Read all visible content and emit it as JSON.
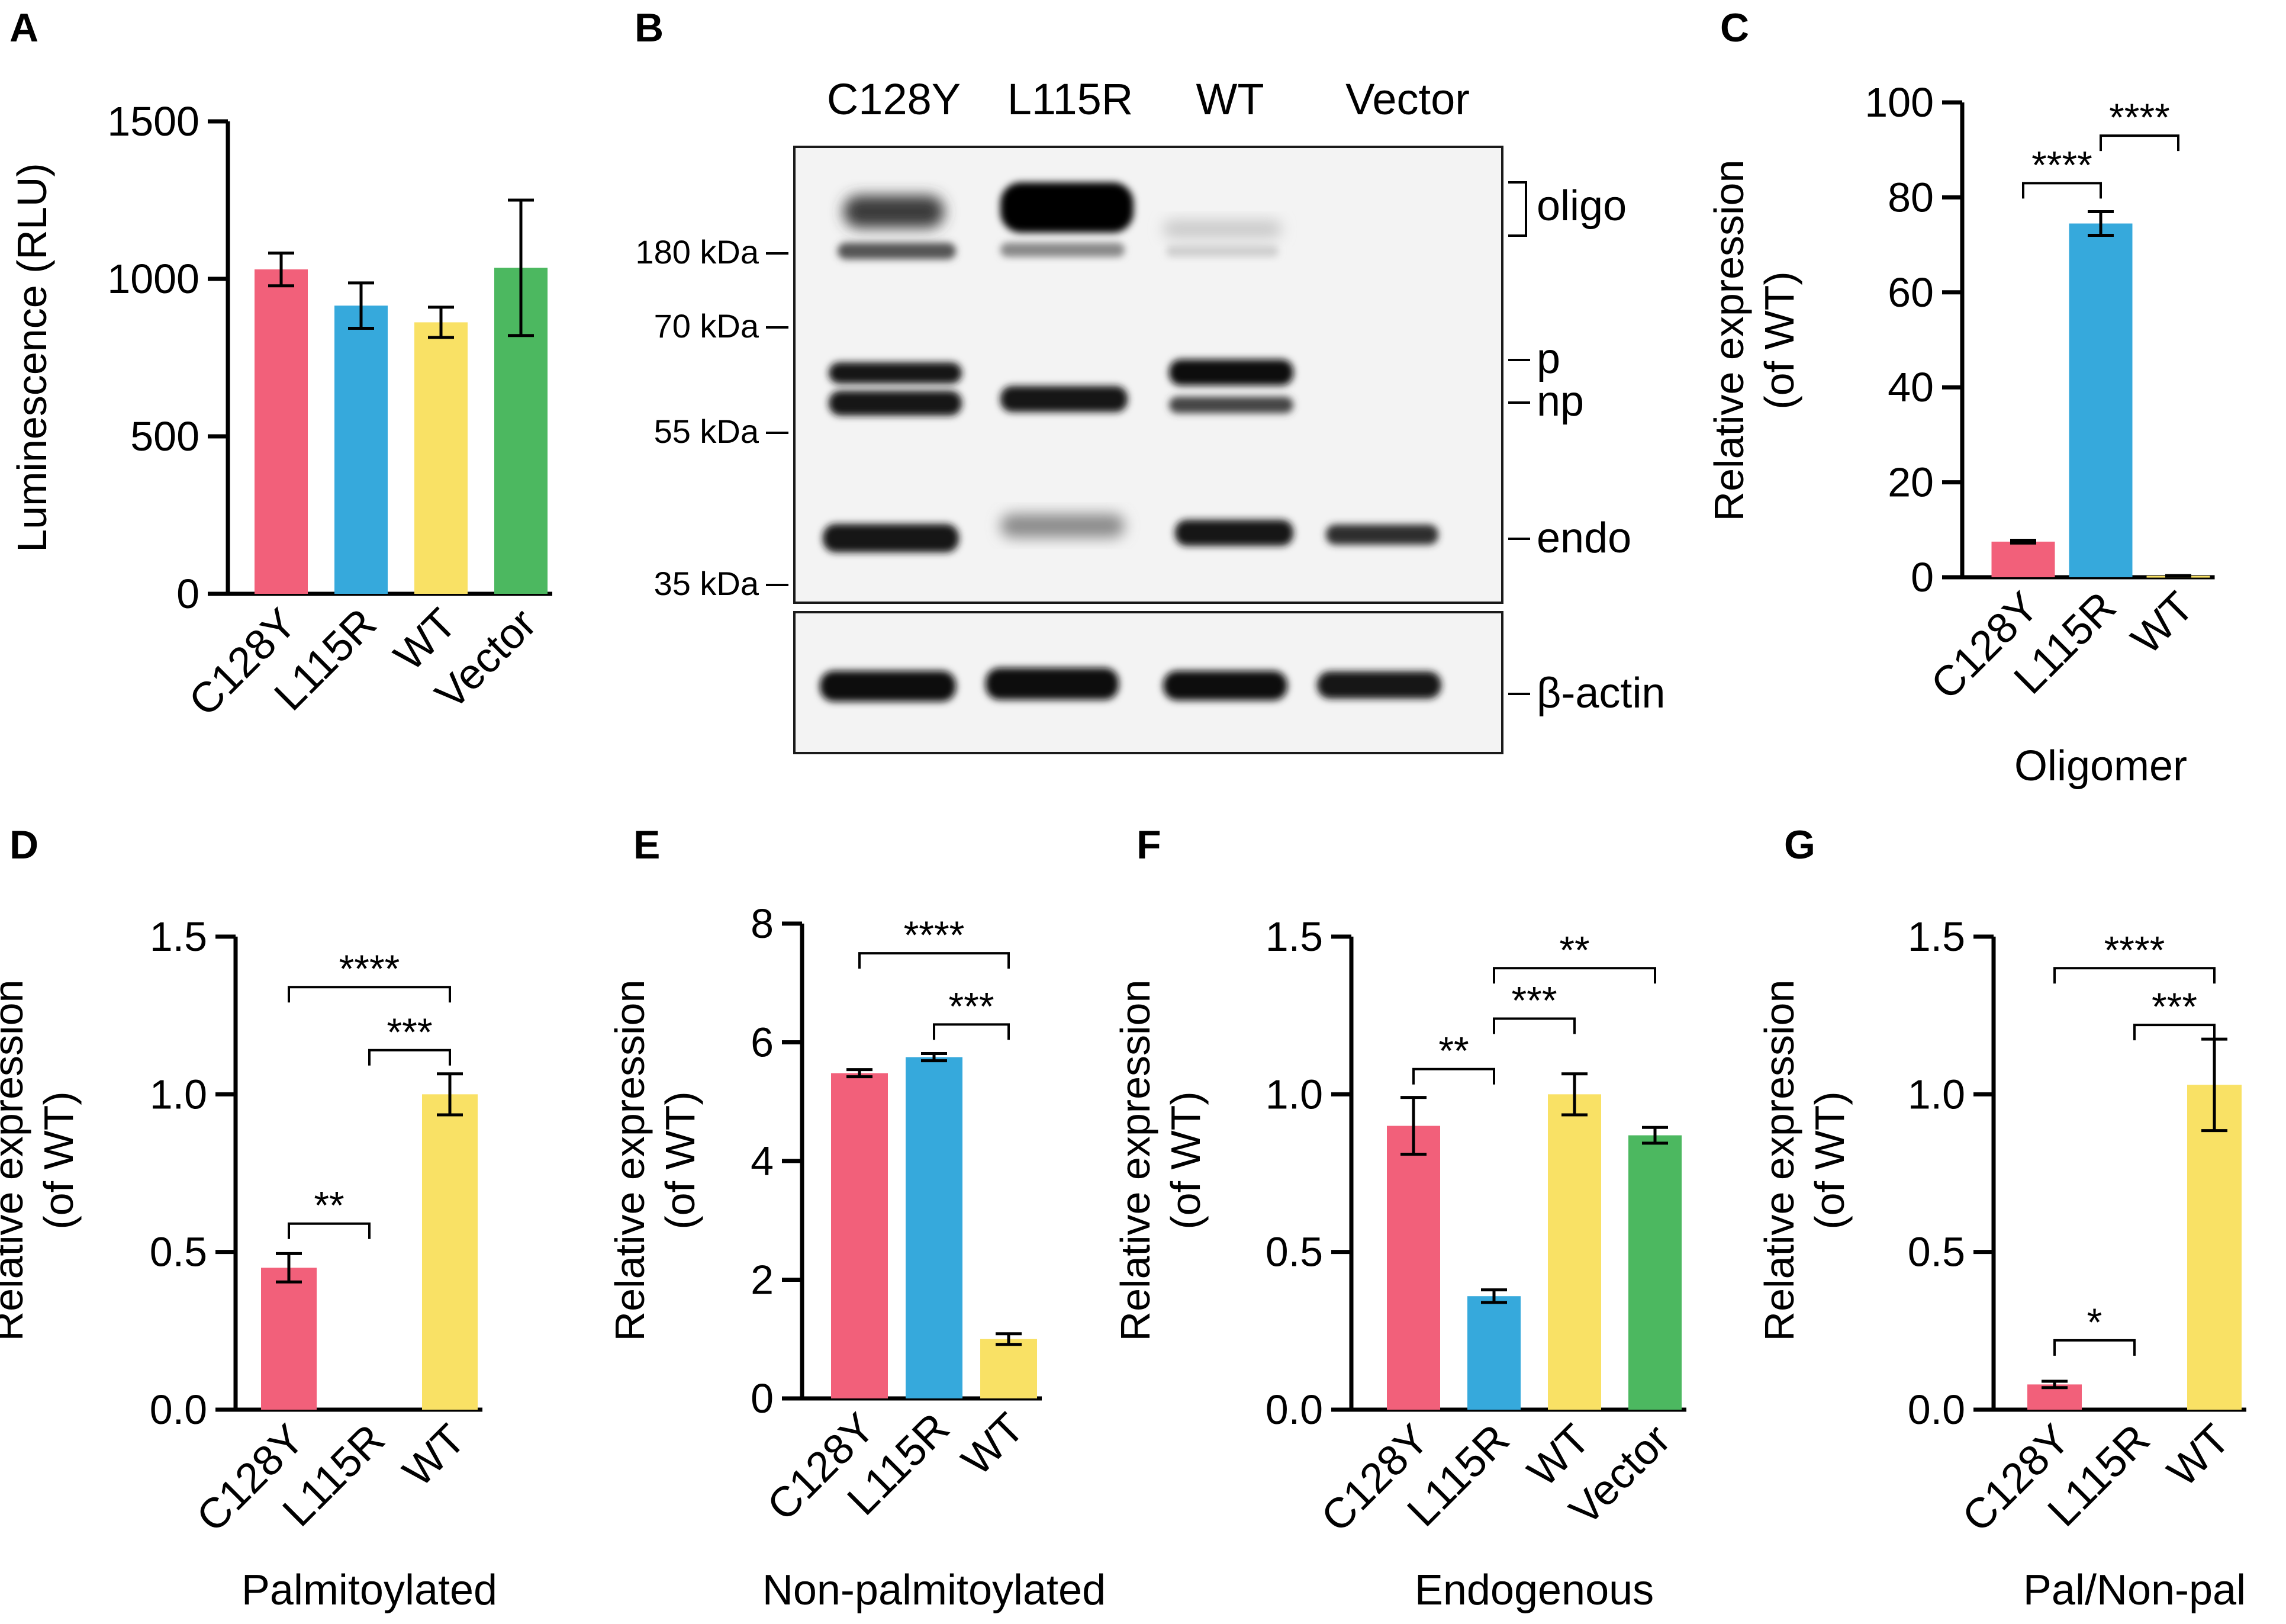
{
  "colors": {
    "C128Y": "#f2607a",
    "L115R": "#36a9dc",
    "WT": "#f9e165",
    "Vector": "#4cb860"
  },
  "blot": {
    "panel": "B",
    "lanes": [
      "C128Y",
      "L115R",
      "WT",
      "Vector"
    ],
    "markers": [
      "180 kDa",
      "70 kDa",
      "55 kDa",
      "35 kDa"
    ],
    "bands": [
      "oligo",
      "p",
      "np",
      "endo",
      "β-actin"
    ]
  },
  "chart_data": [
    {
      "panel": "A",
      "type": "bar",
      "categories": [
        "C128Y",
        "L115R",
        "WT",
        "Vector"
      ],
      "values": [
        1030,
        915,
        862,
        1035
      ],
      "errors": [
        52,
        72,
        48,
        215
      ],
      "ylabel": "Luminescence (RLU)",
      "xlabel": "",
      "ylim": [
        0,
        1500
      ],
      "yticks": [
        "0",
        "500",
        "1000",
        "1500"
      ],
      "brackets": []
    },
    {
      "panel": "C",
      "type": "bar",
      "categories": [
        "C128Y",
        "L115R",
        "WT"
      ],
      "values": [
        7.5,
        74.5,
        0.3
      ],
      "errors": [
        0.3,
        2.5,
        0.05
      ],
      "ylabel": "Relative expression (of WT)",
      "xlabel": "Oligomer",
      "ylim": [
        0,
        100
      ],
      "yticks": [
        "0",
        "20",
        "40",
        "60",
        "80",
        "100"
      ],
      "brackets": [
        {
          "from": 0,
          "to": 1,
          "label": "****",
          "y": 83
        },
        {
          "from": 1,
          "to": 2,
          "label": "****",
          "y": 93
        }
      ]
    },
    {
      "panel": "D",
      "type": "bar",
      "categories": [
        "C128Y",
        "L115R",
        "WT"
      ],
      "values": [
        0.45,
        0,
        1.0
      ],
      "errors": [
        0.045,
        0,
        0.065
      ],
      "ylabel": "Relative expression (of WT)",
      "xlabel": "Palmitoylated",
      "ylim": [
        0,
        1.5
      ],
      "yticks": [
        "0.0",
        "0.5",
        "1.0",
        "1.5"
      ],
      "brackets": [
        {
          "from": 0,
          "to": 1,
          "label": "**",
          "y": 0.59
        },
        {
          "from": 1,
          "to": 2,
          "label": "***",
          "y": 1.14
        },
        {
          "from": 0,
          "to": 2,
          "label": "****",
          "y": 1.34
        }
      ]
    },
    {
      "panel": "E",
      "type": "bar",
      "categories": [
        "C128Y",
        "L115R",
        "WT"
      ],
      "values": [
        5.48,
        5.75,
        1.0
      ],
      "errors": [
        0.06,
        0.06,
        0.09
      ],
      "ylabel": "Relative expression (of WT)",
      "xlabel": "Non-palmitoylated",
      "ylim": [
        0,
        8
      ],
      "yticks": [
        "0",
        "2",
        "4",
        "6",
        "8"
      ],
      "brackets": [
        {
          "from": 1,
          "to": 2,
          "label": "***",
          "y": 6.3
        },
        {
          "from": 0,
          "to": 2,
          "label": "****",
          "y": 7.5
        }
      ]
    },
    {
      "panel": "F",
      "type": "bar",
      "categories": [
        "C128Y",
        "L115R",
        "WT",
        "Vector"
      ],
      "values": [
        0.9,
        0.36,
        1.0,
        0.87
      ],
      "errors": [
        0.09,
        0.02,
        0.065,
        0.025
      ],
      "ylabel": "Relative expression (of WT)",
      "xlabel": "Endogenous",
      "ylim": [
        0,
        1.5
      ],
      "yticks": [
        "0.0",
        "0.5",
        "1.0",
        "1.5"
      ],
      "brackets": [
        {
          "from": 0,
          "to": 1,
          "label": "**",
          "y": 1.08
        },
        {
          "from": 1,
          "to": 2,
          "label": "***",
          "y": 1.24
        },
        {
          "from": 1,
          "to": 3,
          "label": "**",
          "y": 1.4
        }
      ]
    },
    {
      "panel": "G",
      "type": "bar",
      "categories": [
        "C128Y",
        "L115R",
        "WT"
      ],
      "values": [
        0.08,
        0,
        1.03
      ],
      "errors": [
        0.01,
        0,
        0.145
      ],
      "ylabel": "Relative expression (of WT)",
      "xlabel": "Pal/Non-pal",
      "ylim": [
        0,
        1.5
      ],
      "yticks": [
        "0.0",
        "0.5",
        "1.0",
        "1.5"
      ],
      "brackets": [
        {
          "from": 0,
          "to": 1,
          "label": "*",
          "y": 0.22
        },
        {
          "from": 1,
          "to": 2,
          "label": "***",
          "y": 1.22
        },
        {
          "from": 0,
          "to": 2,
          "label": "****",
          "y": 1.4
        }
      ]
    }
  ]
}
